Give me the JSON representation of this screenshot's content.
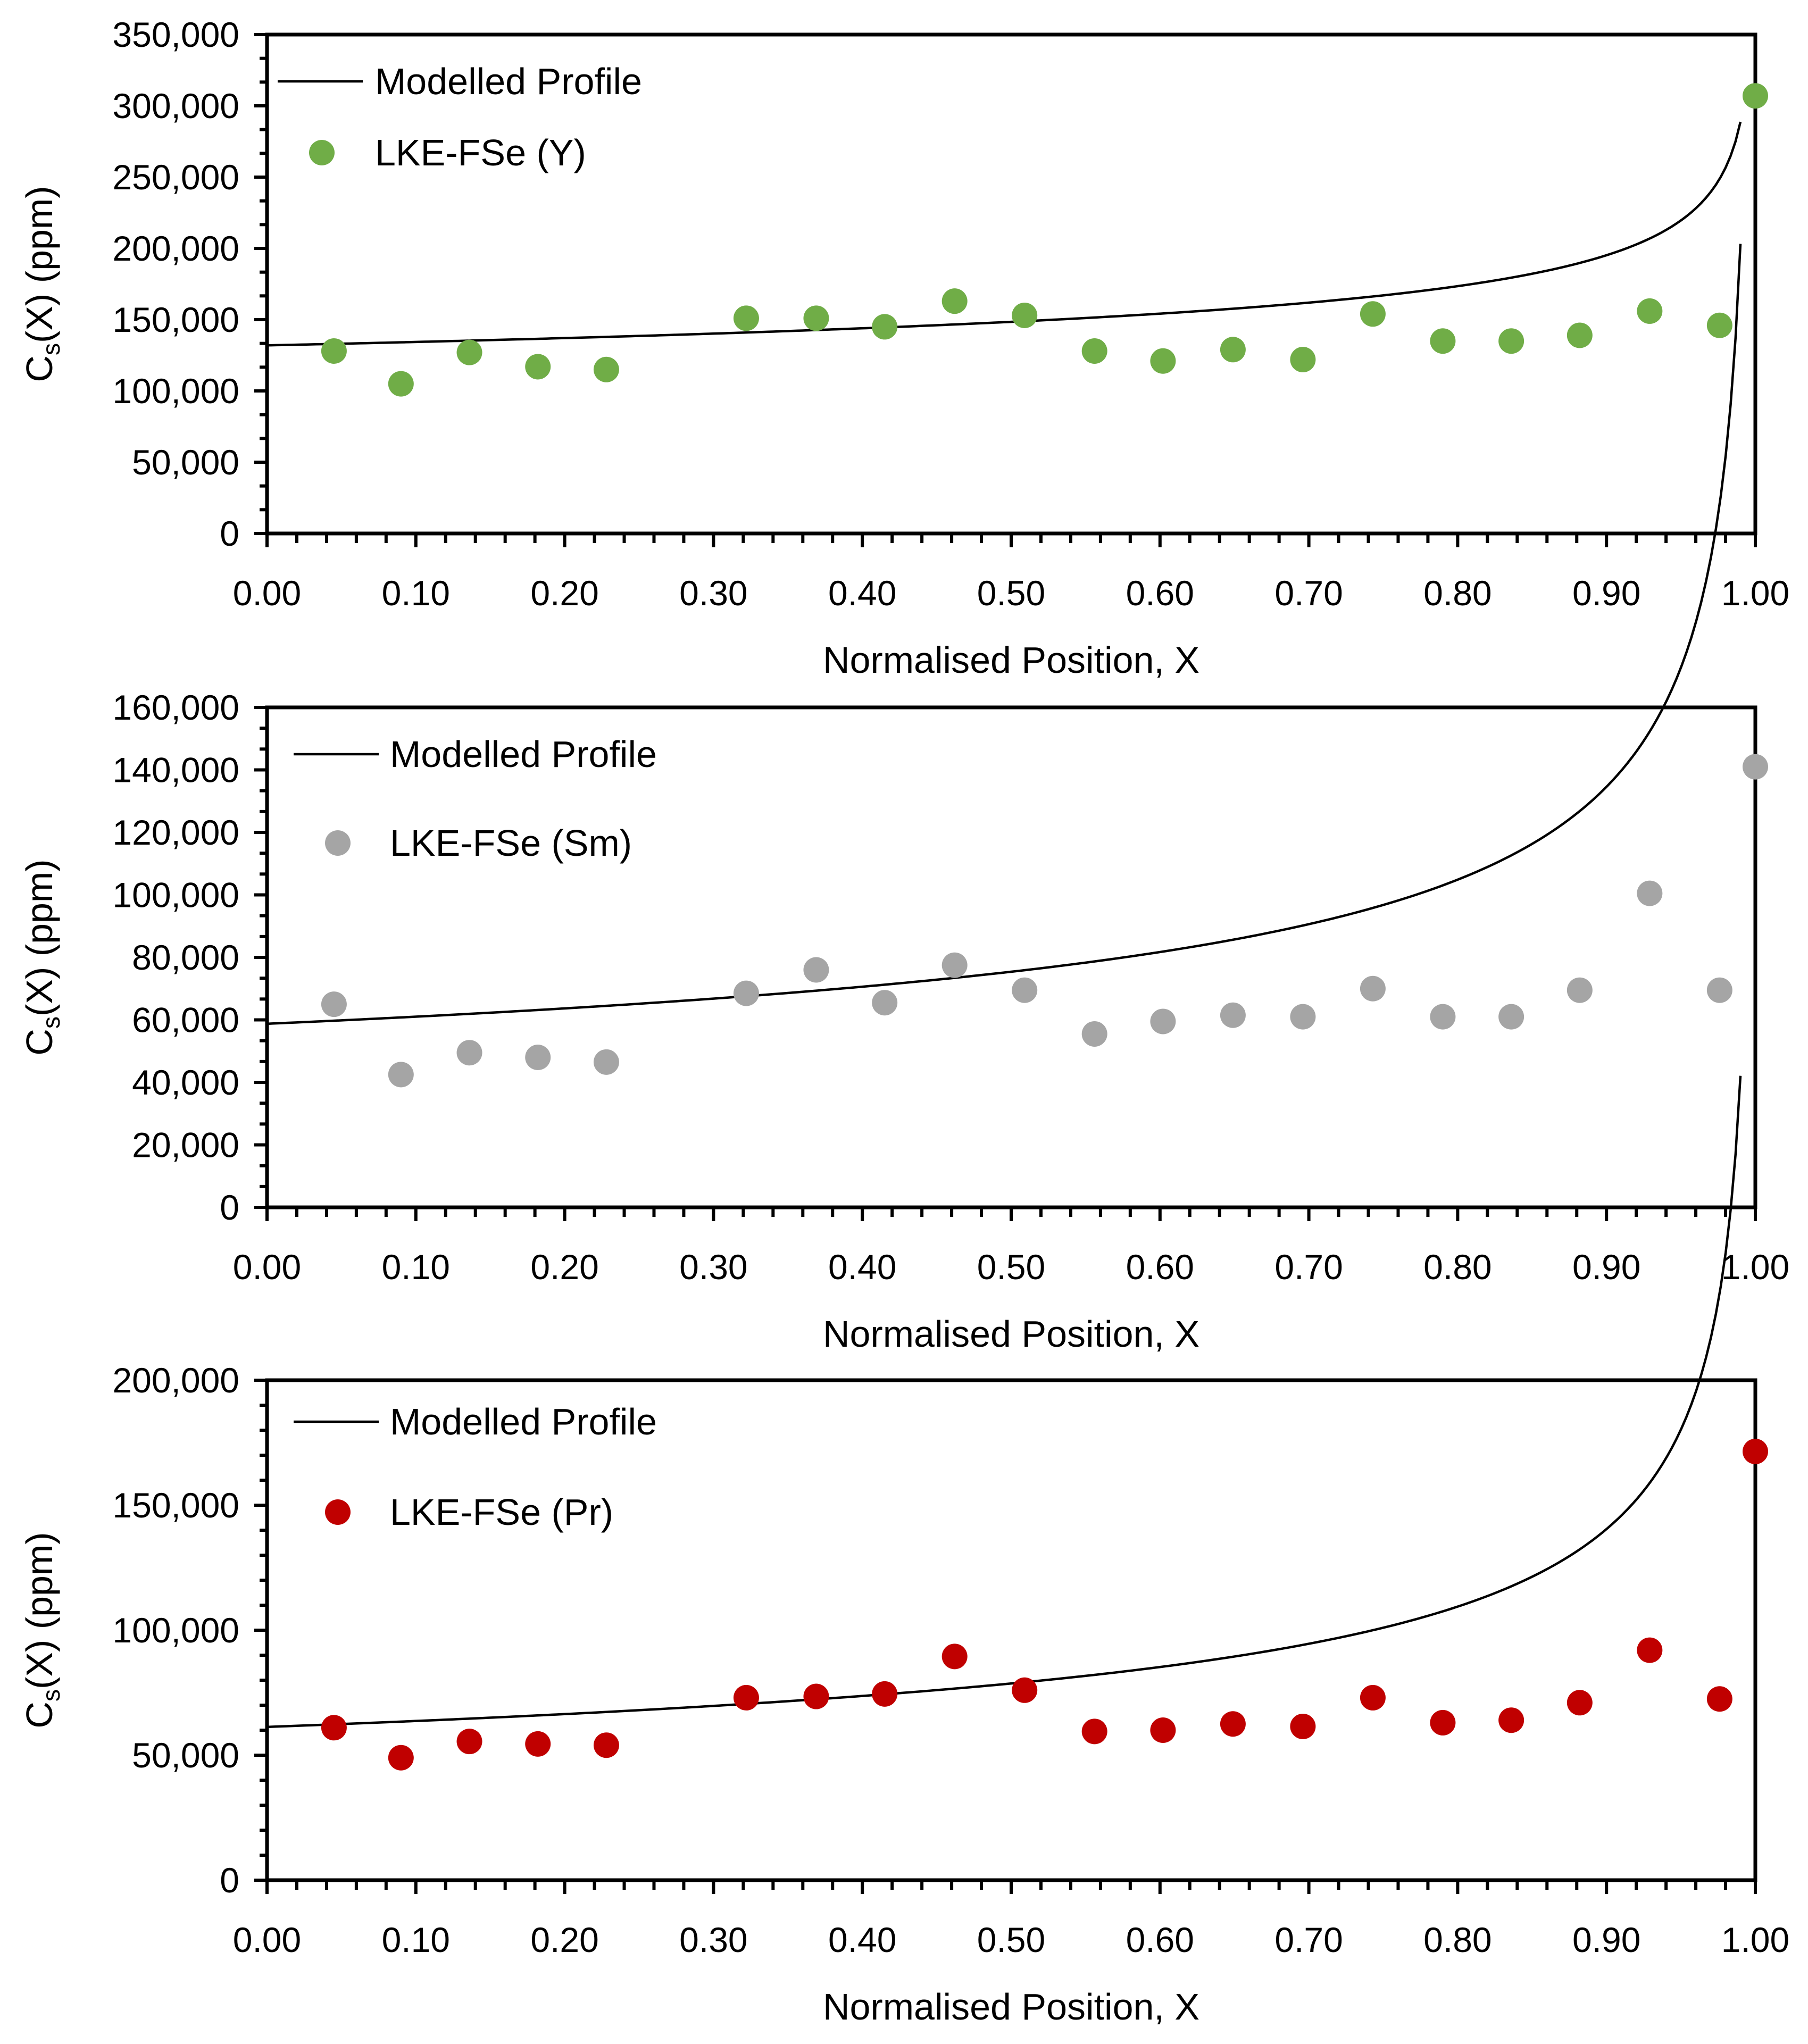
{
  "chart_data": [
    {
      "type": "scatter",
      "xlabel": "Normalised Position, X",
      "ylabel_main": "C",
      "ylabel_sub": "s",
      "ylabel_rest": "(X) (ppm)",
      "xlim": [
        0,
        1
      ],
      "ylim": [
        0,
        350000
      ],
      "x_ticks": [
        "0.00",
        "0.10",
        "0.20",
        "0.30",
        "0.40",
        "0.50",
        "0.60",
        "0.70",
        "0.80",
        "0.90",
        "1.00"
      ],
      "y_ticks": [
        "0",
        "50,000",
        "100,000",
        "150,000",
        "200,000",
        "250,000",
        "300,000",
        "350,000"
      ],
      "y_tick_values": [
        0,
        50000,
        100000,
        150000,
        200000,
        250000,
        300000,
        350000
      ],
      "legend": {
        "line_label": "Modelled Profile",
        "marker_label": "LKE-FSe (Y)",
        "position": "top-left"
      },
      "series": [
        {
          "name": "LKE-FSe (Y)",
          "color": "#70ad47",
          "x": [
            0.045,
            0.09,
            0.136,
            0.182,
            0.228,
            0.322,
            0.369,
            0.415,
            0.462,
            0.509,
            0.556,
            0.602,
            0.649,
            0.696,
            0.743,
            0.79,
            0.836,
            0.882,
            0.929,
            0.976,
            1.0
          ],
          "y": [
            128000,
            105000,
            127000,
            117000,
            115000,
            151000,
            151000,
            145000,
            163000,
            153000,
            128000,
            121000,
            129000,
            122000,
            154000,
            135000,
            135000,
            139000,
            156000,
            146000,
            307000
          ]
        }
      ],
      "model": {
        "name": "Modelled Profile",
        "k": 0.83,
        "c0": 159000,
        "x_max": 0.99
      }
    },
    {
      "type": "scatter",
      "xlabel": "Normalised Position, X",
      "ylabel_main": "C",
      "ylabel_sub": "s",
      "ylabel_rest": "(X) (ppm)",
      "xlim": [
        0,
        1
      ],
      "ylim": [
        0,
        160000
      ],
      "x_ticks": [
        "0.00",
        "0.10",
        "0.20",
        "0.30",
        "0.40",
        "0.50",
        "0.60",
        "0.70",
        "0.80",
        "0.90",
        "1.00"
      ],
      "y_ticks": [
        "0",
        "20,000",
        "40,000",
        "60,000",
        "80,000",
        "100,000",
        "120,000",
        "140,000",
        "160,000"
      ],
      "y_tick_values": [
        0,
        20000,
        40000,
        60000,
        80000,
        100000,
        120000,
        140000,
        160000
      ],
      "legend": {
        "line_label": "Modelled Profile",
        "marker_label": "LKE-FSe (Sm)",
        "position": "top-left"
      },
      "series": [
        {
          "name": "LKE-FSe (Sm)",
          "color": "#a5a5a5",
          "x": [
            0.045,
            0.09,
            0.136,
            0.182,
            0.228,
            0.322,
            0.369,
            0.415,
            0.462,
            0.509,
            0.556,
            0.602,
            0.649,
            0.696,
            0.743,
            0.79,
            0.836,
            0.882,
            0.929,
            0.976,
            1.0
          ],
          "y": [
            65000,
            42500,
            49500,
            48000,
            46500,
            68500,
            76000,
            65500,
            77500,
            69500,
            55500,
            59500,
            61500,
            61000,
            70000,
            61000,
            61000,
            69500,
            100500,
            69500,
            141000
          ]
        }
      ],
      "model": {
        "name": "Modelled Profile",
        "k": 0.64,
        "c0": 91800,
        "x_max": 0.99
      }
    },
    {
      "type": "scatter",
      "xlabel": "Normalised Position, X",
      "ylabel_main": "C",
      "ylabel_sub": "s",
      "ylabel_rest": "(X) (ppm)",
      "xlim": [
        0,
        1
      ],
      "ylim": [
        0,
        200000
      ],
      "x_ticks": [
        "0.00",
        "0.10",
        "0.20",
        "0.30",
        "0.40",
        "0.50",
        "0.60",
        "0.70",
        "0.80",
        "0.90",
        "1.00"
      ],
      "y_ticks": [
        "0",
        "50,000",
        "100,000",
        "150,000",
        "200,000"
      ],
      "y_tick_values": [
        0,
        50000,
        100000,
        150000,
        200000
      ],
      "legend": {
        "line_label": "Modelled Profile",
        "marker_label": "LKE-FSe (Pr)",
        "position": "top-left"
      },
      "series": [
        {
          "name": "LKE-FSe (Pr)",
          "color": "#c00000",
          "x": [
            0.045,
            0.09,
            0.136,
            0.182,
            0.228,
            0.322,
            0.369,
            0.415,
            0.462,
            0.509,
            0.556,
            0.602,
            0.649,
            0.696,
            0.743,
            0.79,
            0.836,
            0.882,
            0.929,
            0.976,
            1.0
          ],
          "y": [
            61000,
            49000,
            55500,
            54500,
            54000,
            73000,
            73500,
            74500,
            89500,
            76000,
            59500,
            60000,
            62500,
            61500,
            73000,
            63000,
            64000,
            71000,
            92000,
            72500,
            171500
          ]
        }
      ],
      "model": {
        "name": "Modelled Profile",
        "k": 0.64,
        "c0": 95800,
        "x_max": 0.99
      }
    }
  ]
}
